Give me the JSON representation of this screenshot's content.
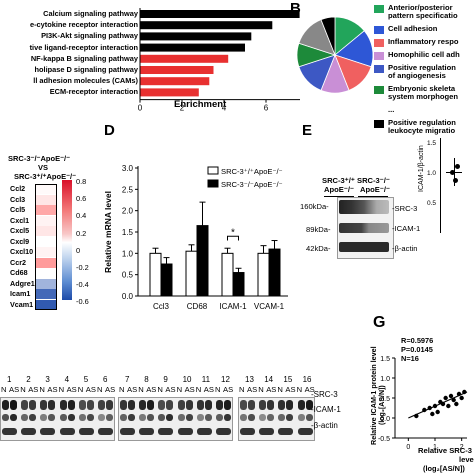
{
  "colors": {
    "black_bar": "#000000",
    "red_bar": "#e83030",
    "pie_colors": [
      "#22a55b",
      "#2e57d6",
      "#f06060",
      "#c98fd6",
      "#3d58c4",
      "#1d8a3a",
      "#888888",
      "#000000"
    ]
  },
  "panelA": {
    "pathways": [
      {
        "label": "Calcium signaling pathway",
        "value": 7.6,
        "color": "black"
      },
      {
        "label": "Cytokine-cytokine receptor interaction",
        "value": 6.3,
        "color": "black"
      },
      {
        "label": "PI3K-Akt signaling pathway",
        "value": 5.3,
        "color": "black"
      },
      {
        "label": "Neuroactive ligand-receptor interaction",
        "value": 5.0,
        "color": "black"
      },
      {
        "label": "NF-kappa B signaling pathway",
        "value": 4.2,
        "color": "red"
      },
      {
        "label": "Phospholipase D signaling pathway",
        "value": 3.5,
        "color": "red"
      },
      {
        "label": "Cell adhesion molecules (CAMs)",
        "value": 3.3,
        "color": "red"
      },
      {
        "label": "ECM-receptor interaction",
        "value": 2.8,
        "color": "red"
      }
    ],
    "shown_labels": [
      "Calcium signaling pathway",
      "e-cytokine receptor interaction",
      "PI3K-Akt signaling pathway",
      "tive ligand-receptor interaction",
      "NF-kappa B signaling pathway",
      "holipase D signaling pathway",
      "ll adhesion molecules (CAMs)",
      "ECM-receptor interaction"
    ],
    "x_ticks": [
      "0",
      "2",
      "4",
      "6"
    ],
    "x_label": "Enrichment"
  },
  "panelB": {
    "letter": "B",
    "legend": [
      "Anterior/posterior pattern specification",
      "Cell adhesion",
      "Inflammatory response",
      "Homophilic cell adhesion",
      "Positive regulation of angiogenesis",
      "Embryonic skeletal system morphogenesis",
      "...",
      "Positive regulation of leukocyte migration"
    ],
    "legend_lines": [
      [
        "Anterior/posterior",
        "pattern specificatio"
      ],
      [
        "Cell adhesion"
      ],
      [
        "Inflammatory respo"
      ],
      [
        "Homophilic cell adh"
      ],
      [
        "Positive regulation",
        "of angiogenesis"
      ],
      [
        "Embryonic skeleta",
        "system morphogen"
      ],
      [
        "..."
      ],
      [
        "Positive regulation",
        "leukocyte migratio"
      ]
    ],
    "pie_values": [
      14,
      16,
      14,
      12,
      14,
      10,
      14,
      6
    ]
  },
  "panelC": {
    "title_line1": "SRC-3⁻/⁻ApoE⁻/⁻",
    "title_line2": "VS",
    "title_line3": "SRC-3⁺/⁺ApoE⁻/⁻",
    "genes": [
      "Ccl2",
      "Ccl3",
      "Ccl5",
      "Cxcl1",
      "Cxcl5",
      "Cxcl9",
      "Cxcl10",
      "Ccr2",
      "Cd68",
      "Adgre1",
      "Icam1",
      "Vcam1"
    ],
    "values": [
      0.02,
      0.1,
      0.35,
      0.05,
      0.1,
      0.0,
      0.05,
      0.4,
      0.0,
      -0.25,
      -0.5,
      -0.55
    ],
    "scale_ticks": [
      "0.8",
      "0.6",
      "0.4",
      "0.2",
      "0",
      "-0.2",
      "-0.4",
      "-0.6"
    ]
  },
  "panelD": {
    "letter": "D",
    "ylabel": "Relative mRNA level",
    "y_ticks": [
      "0.0",
      "0.5",
      "1.0",
      "1.5",
      "2.0",
      "2.5",
      "3.0"
    ],
    "legend": [
      "SRC-3⁺/⁺ApoE⁻/⁻",
      "SRC-3⁻/⁻ApoE⁻/⁻"
    ],
    "categories": [
      "Ccl3",
      "CD68",
      "ICAM-1",
      "VCAM-1"
    ],
    "wt": [
      1.0,
      1.05,
      1.0,
      1.0
    ],
    "ko": [
      0.75,
      1.65,
      0.55,
      1.1
    ],
    "wt_err": [
      0.12,
      0.15,
      0.12,
      0.18
    ],
    "ko_err": [
      0.15,
      0.55,
      0.1,
      0.2
    ],
    "sig": "*"
  },
  "panelE": {
    "letter": "E",
    "col1": [
      "SRC-3⁺/⁺",
      "ApoE⁻/⁻"
    ],
    "col2": [
      "SRC-3⁻/⁻",
      "ApoE⁻/⁻"
    ],
    "kda": [
      "160kDa-",
      "89kDa-",
      "42kDa-"
    ],
    "bands": [
      "-SRC-3",
      "-ICAM-1",
      "-β-actin"
    ],
    "side_ylabel": "ICAM-1/β-actin",
    "side_ticks": [
      "1.5",
      "1.0",
      "0.5"
    ]
  },
  "panelF": {
    "lanes": [
      "1",
      "2",
      "3",
      "4",
      "5",
      "6",
      "7",
      "8",
      "9",
      "10",
      "11",
      "12",
      "13",
      "14",
      "15",
      "16"
    ],
    "pair": [
      "N",
      "AS"
    ],
    "bands": [
      "-SRC-3",
      "-ICAM-1",
      "-β-actin"
    ]
  },
  "panelG": {
    "letter": "G",
    "stats": [
      "R=0.5976",
      "P=0.0145",
      "N=16"
    ],
    "ylabel1": "Relative ICAM-1 protein level",
    "ylabel2": "(log₂[AS/N])",
    "xlabel1": "Relative SRC-3",
    "xlabel2": "level",
    "xlabel3": "(log₂[AS/N])",
    "y_ticks": [
      "1.5",
      "1.0",
      "0.5",
      "0.0",
      "-0.5"
    ],
    "x_ticks": [
      "0",
      "1",
      "2"
    ],
    "points": [
      [
        0.3,
        0.05
      ],
      [
        0.6,
        0.2
      ],
      [
        0.8,
        0.25
      ],
      [
        1.0,
        0.3
      ],
      [
        1.1,
        0.15
      ],
      [
        1.2,
        0.4
      ],
      [
        1.3,
        0.35
      ],
      [
        1.4,
        0.5
      ],
      [
        1.5,
        0.3
      ],
      [
        1.6,
        0.55
      ],
      [
        1.7,
        0.45
      ],
      [
        1.8,
        0.35
      ],
      [
        1.9,
        0.6
      ],
      [
        2.0,
        0.5
      ],
      [
        2.1,
        0.65
      ],
      [
        0.9,
        0.1
      ]
    ]
  }
}
